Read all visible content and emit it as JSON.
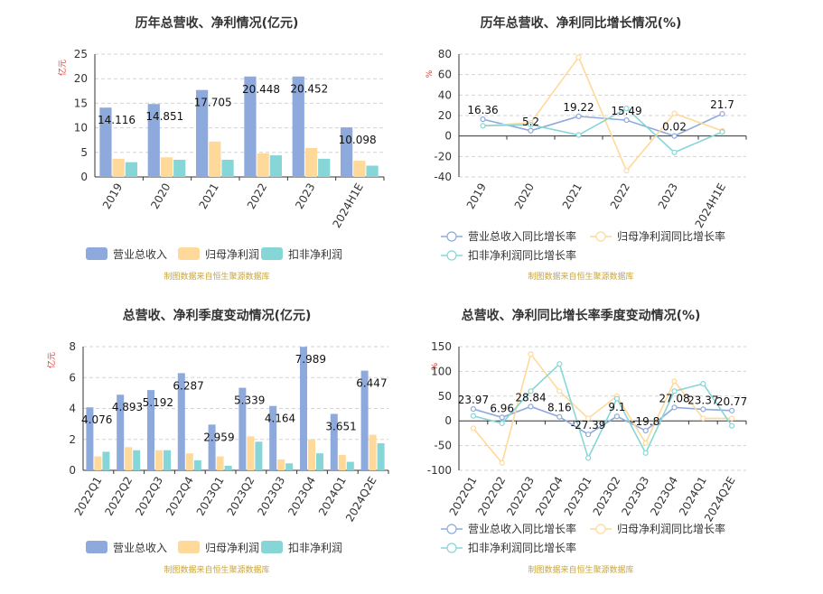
{
  "colors": {
    "revenue": "#8eaadc",
    "net_profit": "#ffd99a",
    "deducted_profit": "#86d6d8",
    "rev_growth": "#8eaadc",
    "np_growth": "#ffd99a",
    "dp_growth": "#86d6d8",
    "source": "#c9a53a",
    "unit": "#e8302a"
  },
  "chart_data": [
    {
      "type": "bar",
      "title": "历年总营收、净利情况(亿元)",
      "ylabel": "亿元",
      "ylim": [
        0,
        25
      ],
      "yticks": [
        0,
        5,
        10,
        15,
        20,
        25
      ],
      "categories": [
        "2019",
        "2020",
        "2021",
        "2022",
        "2023",
        "2024H1E"
      ],
      "series": [
        {
          "name": "营业总收入",
          "values": [
            14.116,
            14.851,
            17.705,
            20.448,
            20.452,
            10.098
          ]
        },
        {
          "name": "归母净利润",
          "values": [
            3.7,
            4.0,
            7.2,
            4.8,
            5.9,
            3.3
          ]
        },
        {
          "name": "扣非净利润",
          "values": [
            3.0,
            3.5,
            3.5,
            4.4,
            3.7,
            2.3
          ]
        }
      ],
      "data_labels": [
        "14.116",
        "14.851",
        "17.705",
        "20.448",
        "20.452",
        "10.098"
      ],
      "legend_position": "bottom",
      "grid": true,
      "source": "制图数据来自恒生聚源数据库"
    },
    {
      "type": "line",
      "title": "历年总营收、净利同比增长情况(%)",
      "ylabel": "%",
      "ylim": [
        -40,
        80
      ],
      "yticks": [
        -40,
        -20,
        0,
        20,
        40,
        60,
        80
      ],
      "categories": [
        "2019",
        "2020",
        "2021",
        "2022",
        "2023",
        "2024H1E"
      ],
      "series": [
        {
          "name": "营业总收入同比增长率",
          "values": [
            16.36,
            5.2,
            19.22,
            15.49,
            0.02,
            21.7
          ]
        },
        {
          "name": "归母净利润同比增长率",
          "values": [
            10.0,
            13.0,
            77.0,
            -34.0,
            22.0,
            5.0
          ]
        },
        {
          "name": "扣非净利润同比增长率",
          "values": [
            10.0,
            11.0,
            1.0,
            27.0,
            -16.0,
            4.0
          ]
        }
      ],
      "data_labels": [
        "16.36",
        "5.2",
        "19.22",
        "15.49",
        "0.02",
        "21.7"
      ],
      "legend_position": "bottom",
      "grid": true,
      "source": "制图数据来自恒生聚源数据库"
    },
    {
      "type": "bar",
      "title": "总营收、净利季度变动情况(亿元)",
      "ylabel": "亿元",
      "ylim": [
        0,
        8
      ],
      "yticks": [
        0,
        2,
        4,
        6,
        8
      ],
      "categories": [
        "2022Q1",
        "2022Q2",
        "2022Q3",
        "2022Q4",
        "2023Q1",
        "2023Q2",
        "2023Q3",
        "2023Q4",
        "2024Q1",
        "2024Q2E"
      ],
      "series": [
        {
          "name": "营业总收入",
          "values": [
            4.076,
            4.893,
            5.192,
            6.287,
            2.959,
            5.339,
            4.164,
            7.989,
            3.651,
            6.447
          ]
        },
        {
          "name": "归母净利润",
          "values": [
            0.9,
            1.5,
            1.3,
            1.1,
            0.9,
            2.2,
            0.7,
            2.0,
            1.0,
            2.3
          ]
        },
        {
          "name": "扣非净利润",
          "values": [
            1.2,
            1.3,
            1.3,
            0.65,
            0.3,
            1.85,
            0.45,
            1.1,
            0.55,
            1.75
          ]
        }
      ],
      "data_labels": [
        "4.076",
        "4.893",
        "5.192",
        "6.287",
        "2.959",
        "5.339",
        "4.164",
        "7.989",
        "3.651",
        "6.447"
      ],
      "legend_position": "bottom",
      "grid": true,
      "source": "制图数据来自恒生聚源数据库"
    },
    {
      "type": "line",
      "title": "总营收、净利同比增长率季度变动情况(%)",
      "ylabel": "%",
      "ylim": [
        -100,
        150
      ],
      "yticks": [
        -100,
        -50,
        0,
        50,
        100,
        150
      ],
      "categories": [
        "2022Q1",
        "2022Q2",
        "2022Q3",
        "2022Q4",
        "2023Q1",
        "2023Q2",
        "2023Q3",
        "2023Q4",
        "2024Q1",
        "2024Q2E"
      ],
      "series": [
        {
          "name": "营业总收入同比增长率",
          "values": [
            23.97,
            6.96,
            28.84,
            8.16,
            -27.39,
            9.1,
            -19.8,
            27.08,
            23.37,
            20.77
          ]
        },
        {
          "name": "归母净利润同比增长率",
          "values": [
            -15,
            -85,
            135,
            60,
            5,
            50,
            -45,
            80,
            5,
            5
          ]
        },
        {
          "name": "扣非净利润同比增长率",
          "values": [
            10,
            -5,
            60,
            115,
            -75,
            45,
            -65,
            60,
            75,
            -10
          ]
        }
      ],
      "data_labels": [
        "23.97",
        "6.96",
        "28.84",
        "8.16",
        "-27.39",
        "9.1",
        "-19.8",
        "27.08",
        "23.37",
        "20.77"
      ],
      "legend_position": "bottom",
      "grid": true,
      "source": "制图数据来自恒生聚源数据库"
    }
  ]
}
